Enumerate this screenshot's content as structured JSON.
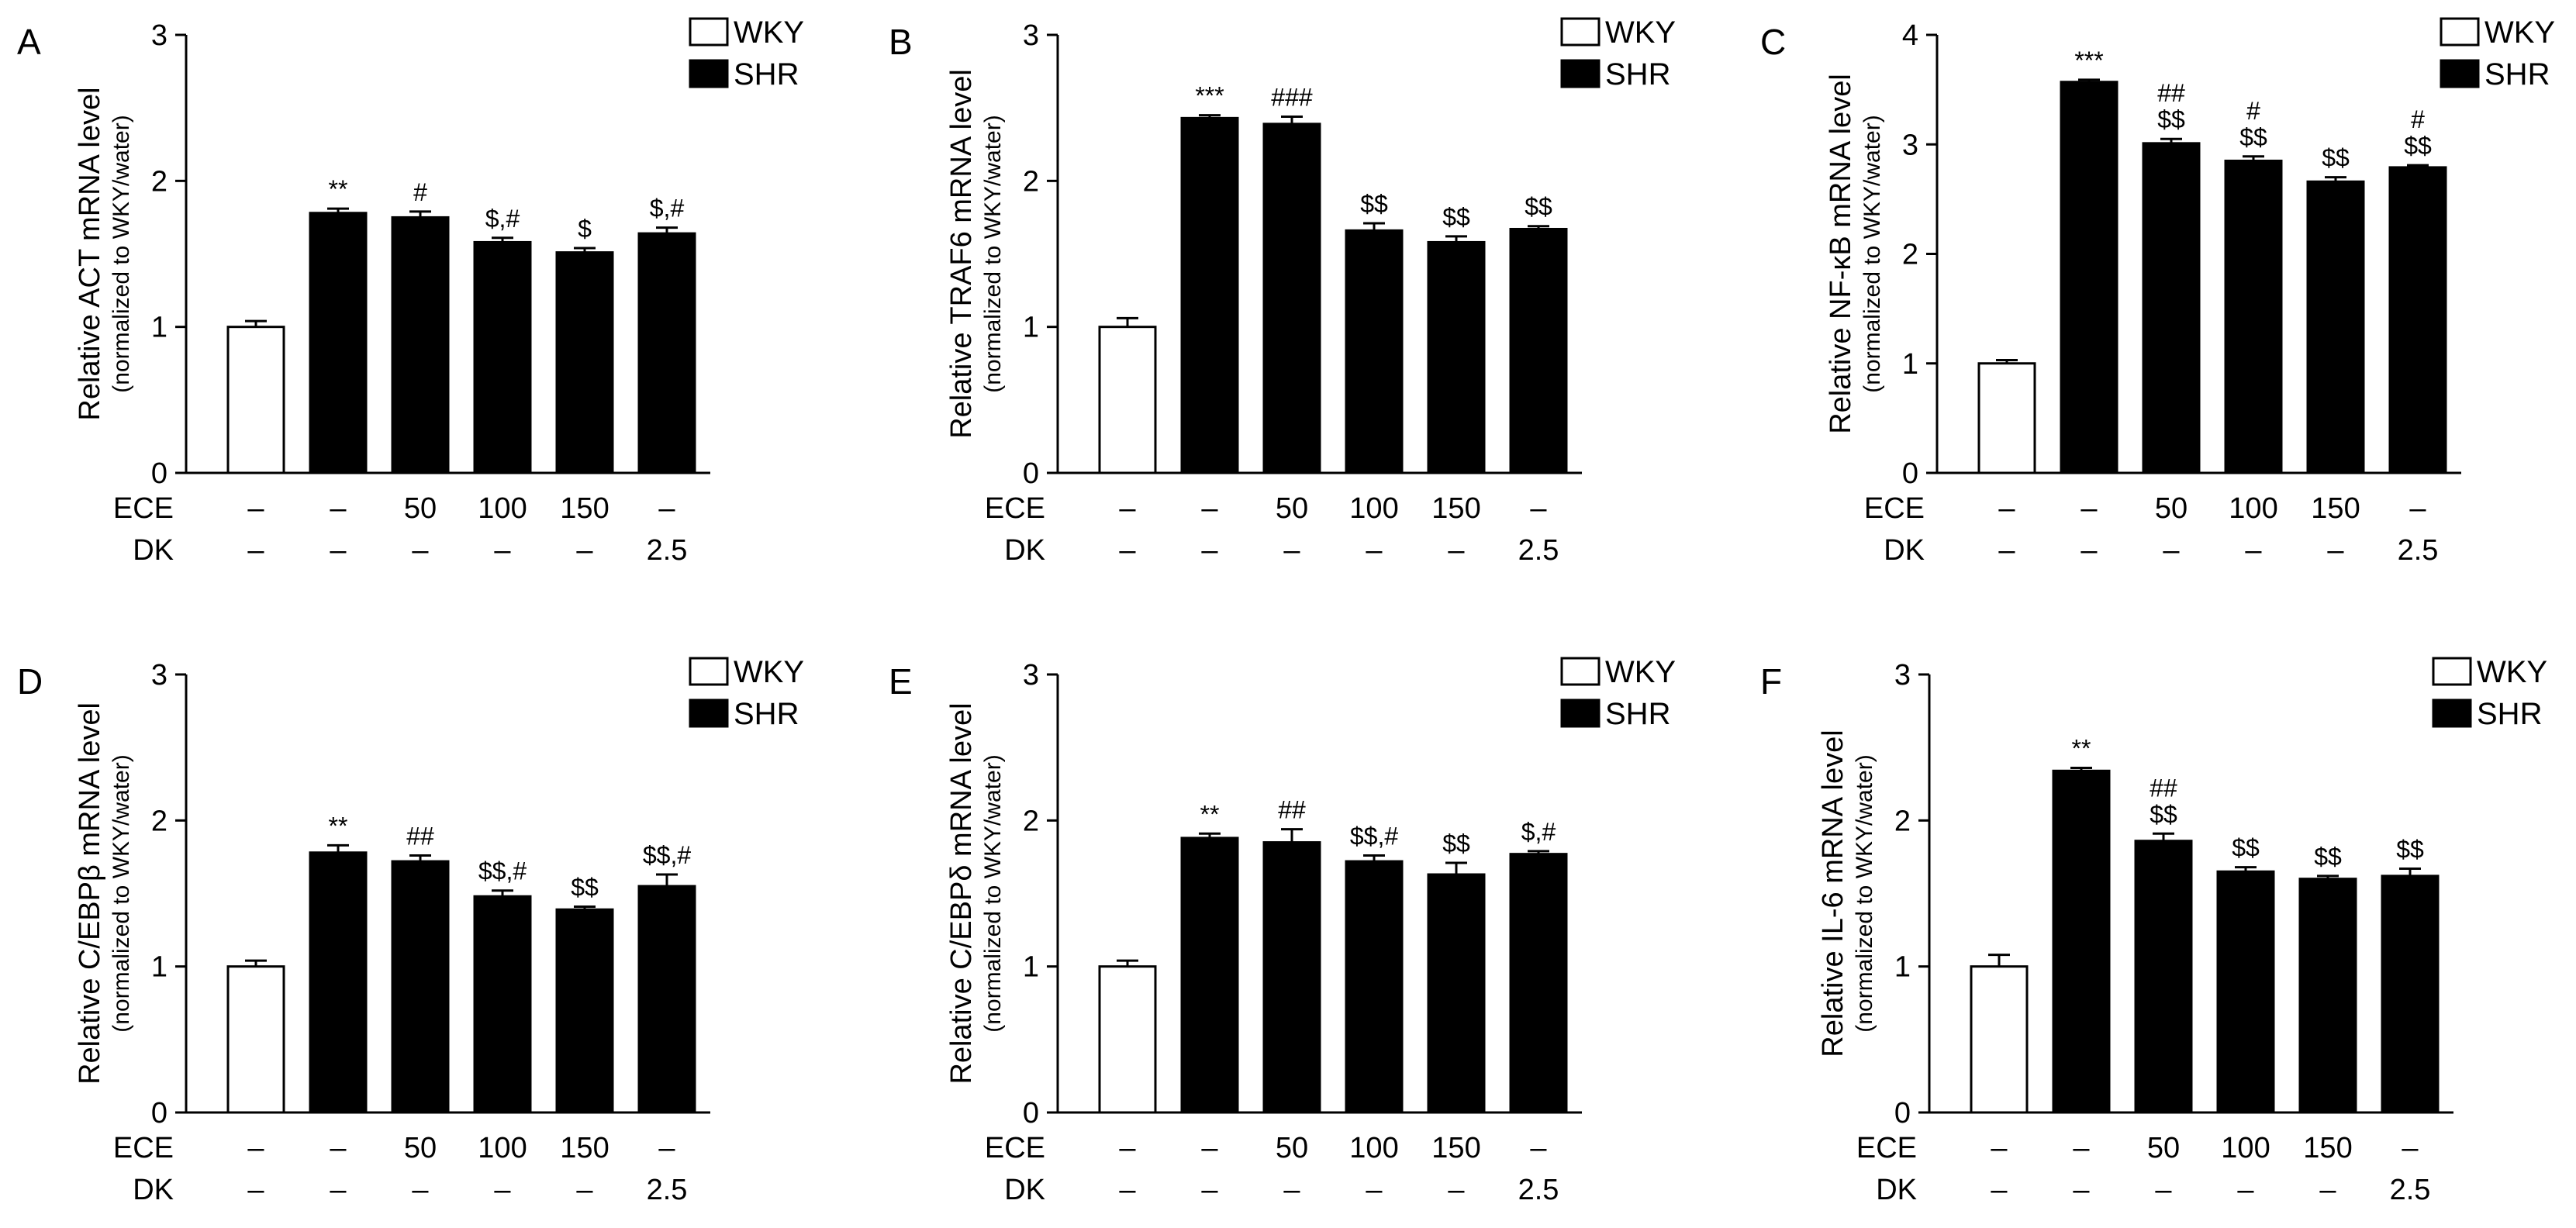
{
  "figure": {
    "panel_letters": [
      "A",
      "B",
      "C",
      "D",
      "E",
      "F"
    ],
    "x_groups": [
      {
        "name": "ECE",
        "values": [
          "–",
          "–",
          "50",
          "100",
          "150",
          "–"
        ]
      },
      {
        "name": "DK",
        "values": [
          "–",
          "–",
          "–",
          "–",
          "–",
          "2.5"
        ]
      }
    ],
    "legend": [
      {
        "label": "WKY",
        "color": "#ffffff"
      },
      {
        "label": "SHR",
        "color": "#000000"
      }
    ]
  },
  "chart_data": [
    {
      "type": "bar",
      "panel": "A",
      "ylabel": "Relative ACT mRNA level",
      "ylabel_sub": "(normalized to WKY/water)",
      "ylim": [
        0,
        3
      ],
      "yticks": [
        "0",
        "1",
        "2",
        "3"
      ],
      "values": [
        1.0,
        1.78,
        1.75,
        1.58,
        1.51,
        1.64
      ],
      "errors": [
        0.04,
        0.03,
        0.04,
        0.03,
        0.03,
        0.04
      ],
      "groups": [
        "WKY",
        "SHR",
        "SHR",
        "SHR",
        "SHR",
        "SHR"
      ],
      "annotations": [
        [],
        [
          "**"
        ],
        [
          "#"
        ],
        [
          "$,#"
        ],
        [
          "$"
        ],
        [
          "$,#"
        ]
      ]
    },
    {
      "type": "bar",
      "panel": "B",
      "ylabel": "Relative TRAF6 mRNA level",
      "ylabel_sub": "(normalized to WKY/water)",
      "ylim": [
        0,
        3
      ],
      "yticks": [
        "0",
        "1",
        "2",
        "3"
      ],
      "values": [
        1.0,
        2.43,
        2.39,
        1.66,
        1.58,
        1.67
      ],
      "errors": [
        0.06,
        0.02,
        0.05,
        0.05,
        0.04,
        0.02
      ],
      "groups": [
        "WKY",
        "SHR",
        "SHR",
        "SHR",
        "SHR",
        "SHR"
      ],
      "annotations": [
        [],
        [
          "***"
        ],
        [
          "###"
        ],
        [
          "$$"
        ],
        [
          "$$"
        ],
        [
          "$$"
        ]
      ]
    },
    {
      "type": "bar",
      "panel": "C",
      "ylabel": "Relative NF-κB mRNA level",
      "ylabel_sub": "(normalized to WKY/water)",
      "ylim": [
        0,
        4
      ],
      "yticks": [
        "0",
        "1",
        "2",
        "3",
        "4"
      ],
      "values": [
        1.0,
        3.57,
        3.01,
        2.85,
        2.66,
        2.79
      ],
      "errors": [
        0.03,
        0.02,
        0.04,
        0.04,
        0.04,
        0.02
      ],
      "groups": [
        "WKY",
        "SHR",
        "SHR",
        "SHR",
        "SHR",
        "SHR"
      ],
      "annotations": [
        [],
        [
          "***"
        ],
        [
          "##",
          "$$"
        ],
        [
          "#",
          "$$"
        ],
        [
          "$$"
        ],
        [
          "#",
          "$$"
        ]
      ]
    },
    {
      "type": "bar",
      "panel": "D",
      "ylabel": "Relative C/EBPβ mRNA level",
      "ylabel_sub": "(normalized to WKY/water)",
      "ylim": [
        0,
        3
      ],
      "yticks": [
        "0",
        "1",
        "2",
        "3"
      ],
      "values": [
        1.0,
        1.78,
        1.72,
        1.48,
        1.39,
        1.55
      ],
      "errors": [
        0.04,
        0.05,
        0.04,
        0.04,
        0.02,
        0.08
      ],
      "groups": [
        "WKY",
        "SHR",
        "SHR",
        "SHR",
        "SHR",
        "SHR"
      ],
      "annotations": [
        [],
        [
          "**"
        ],
        [
          "##"
        ],
        [
          "$$,#"
        ],
        [
          "$$"
        ],
        [
          "$$,#"
        ]
      ]
    },
    {
      "type": "bar",
      "panel": "E",
      "ylabel": "Relative C/EBPδ mRNA level",
      "ylabel_sub": "(normalized to WKY/water)",
      "ylim": [
        0,
        3
      ],
      "yticks": [
        "0",
        "1",
        "2",
        "3"
      ],
      "values": [
        1.0,
        1.88,
        1.85,
        1.72,
        1.63,
        1.77
      ],
      "errors": [
        0.04,
        0.03,
        0.09,
        0.04,
        0.08,
        0.02
      ],
      "groups": [
        "WKY",
        "SHR",
        "SHR",
        "SHR",
        "SHR",
        "SHR"
      ],
      "annotations": [
        [],
        [
          "**"
        ],
        [
          "##"
        ],
        [
          "$$,#"
        ],
        [
          "$$"
        ],
        [
          "$,#"
        ]
      ]
    },
    {
      "type": "bar",
      "panel": "F",
      "ylabel": "Relative IL-6 mRNA level",
      "ylabel_sub": "(normalized to WKY/water)",
      "ylim": [
        0,
        3
      ],
      "yticks": [
        "0",
        "1",
        "2",
        "3"
      ],
      "values": [
        1.0,
        2.34,
        1.86,
        1.65,
        1.6,
        1.62
      ],
      "errors": [
        0.08,
        0.02,
        0.05,
        0.03,
        0.02,
        0.05
      ],
      "groups": [
        "WKY",
        "SHR",
        "SHR",
        "SHR",
        "SHR",
        "SHR"
      ],
      "annotations": [
        [],
        [
          "**"
        ],
        [
          "##",
          "$$"
        ],
        [
          "$$"
        ],
        [
          "$$"
        ],
        [
          "$$"
        ]
      ]
    }
  ]
}
